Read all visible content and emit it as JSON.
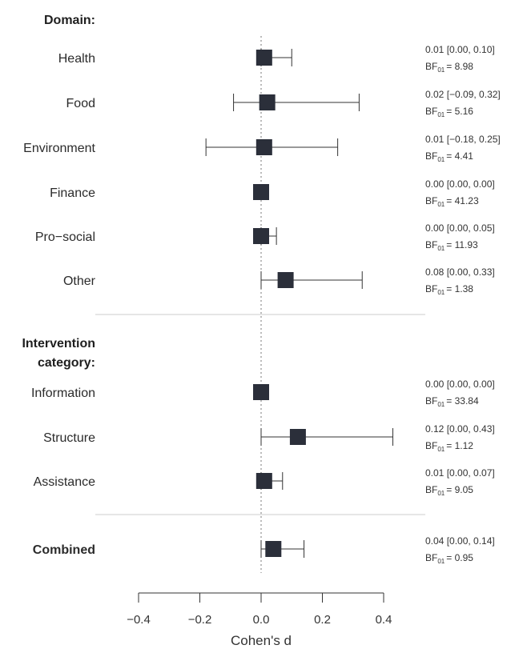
{
  "chart_data": {
    "type": "forest",
    "xlabel": "Cohen's d",
    "xlim": [
      -0.4,
      0.4
    ],
    "xticks": [
      {
        "value": -0.4,
        "label": "−0.4"
      },
      {
        "value": -0.2,
        "label": "−0.2"
      },
      {
        "value": 0.0,
        "label": "0.0"
      },
      {
        "value": 0.2,
        "label": "0.2"
      },
      {
        "value": 0.4,
        "label": "0.4"
      }
    ],
    "reference_line": 0,
    "colors": {
      "marker": "#2b2f3a",
      "whisker": "#333333",
      "divider": "#cccccc",
      "reference": "#777777"
    },
    "sections": [
      {
        "label": "Domain:",
        "rows": [
          {
            "label": "Health",
            "estimate": 0.01,
            "lower": 0.0,
            "upper": 0.1,
            "text": "0.01 [0.00, 0.10]",
            "bf_prefix": "BF",
            "bf_sub": "01",
            "bf_value": "= 8.98"
          },
          {
            "label": "Food",
            "estimate": 0.02,
            "lower": -0.09,
            "upper": 0.32,
            "text": "0.02 [−0.09, 0.32]",
            "bf_prefix": "BF",
            "bf_sub": "01",
            "bf_value": "= 5.16"
          },
          {
            "label": "Environment",
            "estimate": 0.01,
            "lower": -0.18,
            "upper": 0.25,
            "text": "0.01 [−0.18, 0.25]",
            "bf_prefix": "BF",
            "bf_sub": "01",
            "bf_value": "= 4.41"
          },
          {
            "label": "Finance",
            "estimate": 0.0,
            "lower": 0.0,
            "upper": 0.0,
            "text": "0.00 [0.00, 0.00]",
            "bf_prefix": "BF",
            "bf_sub": "01",
            "bf_value": "= 41.23"
          },
          {
            "label": "Pro−social",
            "estimate": 0.0,
            "lower": 0.0,
            "upper": 0.05,
            "text": "0.00 [0.00, 0.05]",
            "bf_prefix": "BF",
            "bf_sub": "01",
            "bf_value": "= 11.93"
          },
          {
            "label": "Other",
            "estimate": 0.08,
            "lower": 0.0,
            "upper": 0.33,
            "text": "0.08 [0.00, 0.33]",
            "bf_prefix": "BF",
            "bf_sub": "01",
            "bf_value": "= 1.38"
          }
        ]
      },
      {
        "label_lines": [
          "Intervention",
          "category:"
        ],
        "rows": [
          {
            "label": "Information",
            "estimate": 0.0,
            "lower": 0.0,
            "upper": 0.0,
            "text": "0.00 [0.00, 0.00]",
            "bf_prefix": "BF",
            "bf_sub": "01",
            "bf_value": "= 33.84"
          },
          {
            "label": "Structure",
            "estimate": 0.12,
            "lower": 0.0,
            "upper": 0.43,
            "text": "0.12 [0.00, 0.43]",
            "bf_prefix": "BF",
            "bf_sub": "01",
            "bf_value": "= 1.12"
          },
          {
            "label": "Assistance",
            "estimate": 0.01,
            "lower": 0.0,
            "upper": 0.07,
            "text": "0.01 [0.00, 0.07]",
            "bf_prefix": "BF",
            "bf_sub": "01",
            "bf_value": "= 9.05"
          }
        ]
      },
      {
        "rows": [
          {
            "label": "Combined",
            "bold": true,
            "estimate": 0.04,
            "lower": 0.0,
            "upper": 0.14,
            "text": "0.04 [0.00, 0.14]",
            "bf_prefix": "BF",
            "bf_sub": "01",
            "bf_value": "= 0.95"
          }
        ]
      }
    ]
  }
}
